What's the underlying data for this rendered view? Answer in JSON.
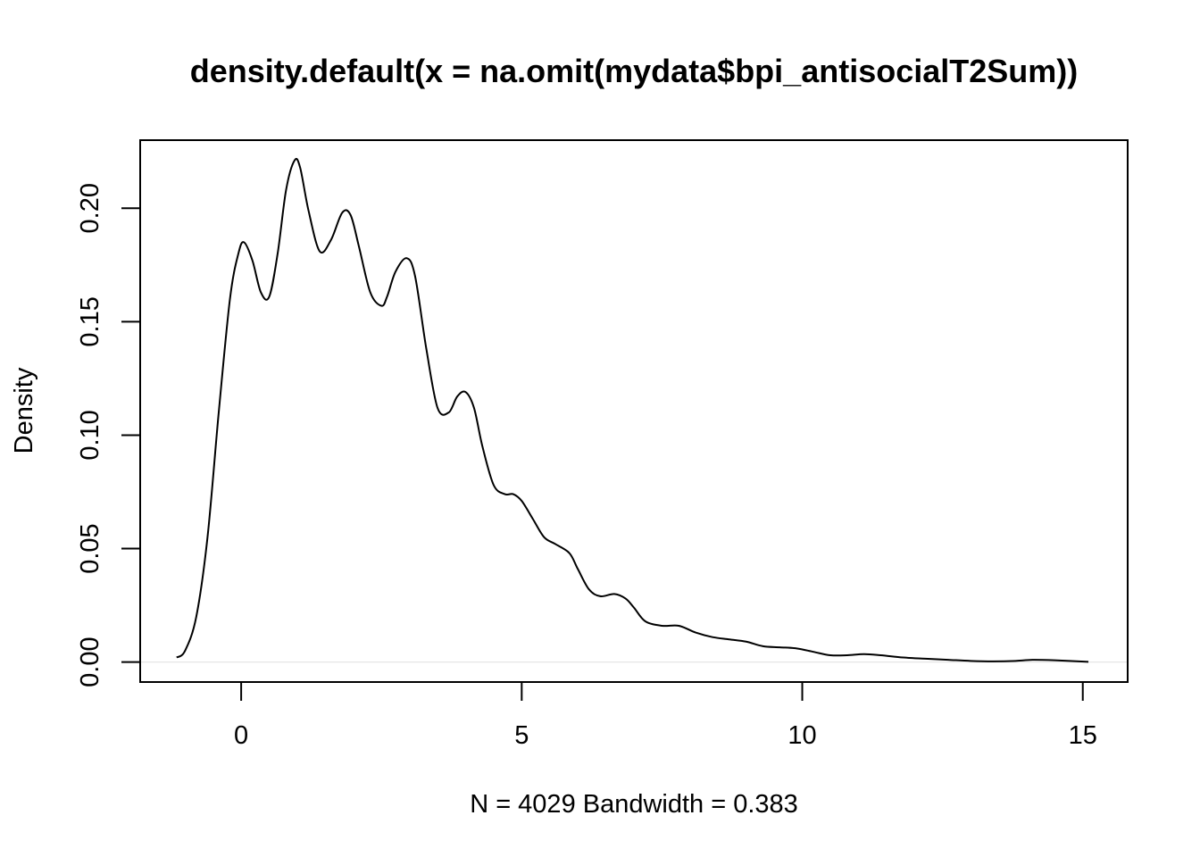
{
  "chart_data": {
    "type": "line",
    "title": "density.default(x = na.omit(mydata$bpi_antisocialT2Sum))",
    "xlabel": "N = 4029   Bandwidth = 0.383",
    "ylabel": "Density",
    "xlim": [
      -1.8,
      15.8
    ],
    "ylim": [
      -0.0088,
      0.23
    ],
    "x_ticks": [
      0,
      5,
      10,
      15
    ],
    "x_tick_labels": [
      "0",
      "5",
      "10",
      "15"
    ],
    "y_ticks": [
      0.0,
      0.05,
      0.1,
      0.15,
      0.2
    ],
    "y_tick_labels": [
      "0.00",
      "0.05",
      "0.10",
      "0.15",
      "0.20"
    ],
    "grid": false,
    "baseline": 0,
    "line_color": "#000000",
    "baseline_color": "#e6e6e6",
    "series": [
      {
        "x": [
          -1.15,
          -1.0,
          -0.8,
          -0.6,
          -0.4,
          -0.2,
          -0.05,
          0.05,
          0.2,
          0.35,
          0.5,
          0.65,
          0.8,
          0.95,
          1.05,
          1.2,
          1.4,
          1.6,
          1.8,
          1.95,
          2.1,
          2.3,
          2.5,
          2.6,
          2.75,
          2.95,
          3.1,
          3.3,
          3.5,
          3.7,
          3.85,
          4.0,
          4.15,
          4.3,
          4.5,
          4.7,
          4.85,
          5.0,
          5.2,
          5.4,
          5.6,
          5.85,
          6.0,
          6.2,
          6.4,
          6.65,
          6.85,
          7.0,
          7.2,
          7.5,
          7.8,
          8.1,
          8.4,
          8.7,
          9.0,
          9.3,
          9.6,
          9.9,
          10.2,
          10.5,
          10.8,
          11.1,
          11.4,
          11.8,
          12.2,
          12.6,
          13.0,
          13.4,
          13.8,
          14.1,
          14.5,
          15.1
        ],
        "y": [
          0.002,
          0.005,
          0.02,
          0.055,
          0.11,
          0.16,
          0.18,
          0.185,
          0.177,
          0.163,
          0.161,
          0.18,
          0.208,
          0.221,
          0.218,
          0.199,
          0.181,
          0.186,
          0.198,
          0.197,
          0.183,
          0.163,
          0.157,
          0.161,
          0.172,
          0.178,
          0.17,
          0.138,
          0.112,
          0.11,
          0.117,
          0.119,
          0.112,
          0.095,
          0.078,
          0.074,
          0.074,
          0.071,
          0.063,
          0.055,
          0.052,
          0.048,
          0.041,
          0.032,
          0.029,
          0.03,
          0.028,
          0.024,
          0.018,
          0.016,
          0.016,
          0.013,
          0.011,
          0.01,
          0.009,
          0.007,
          0.0065,
          0.006,
          0.0045,
          0.003,
          0.003,
          0.0035,
          0.003,
          0.002,
          0.0015,
          0.001,
          0.0005,
          0.0003,
          0.0005,
          0.001,
          0.0008,
          0.0001
        ]
      }
    ]
  }
}
